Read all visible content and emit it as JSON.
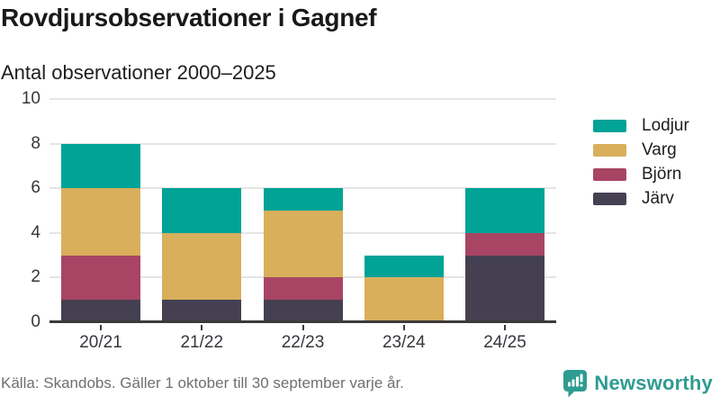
{
  "chart_data": {
    "type": "bar",
    "stacked": true,
    "title": "Rovdjursobservationer i Gagnef",
    "subtitle": "Antal observationer 2000–2025",
    "categories": [
      "20/21",
      "21/22",
      "22/23",
      "23/24",
      "24/25"
    ],
    "series": [
      {
        "name": "Järv",
        "color": "#454051",
        "values": [
          1,
          1,
          1,
          0,
          3
        ]
      },
      {
        "name": "Björn",
        "color": "#a84564",
        "values": [
          2,
          0,
          1,
          0,
          1
        ]
      },
      {
        "name": "Varg",
        "color": "#d9af5b",
        "values": [
          3,
          3,
          3,
          2,
          0
        ]
      },
      {
        "name": "Lodjur",
        "color": "#00a396",
        "values": [
          2,
          2,
          1,
          1,
          2
        ]
      }
    ],
    "ylim": [
      0,
      10
    ],
    "yticks": [
      0,
      2,
      4,
      6,
      8,
      10
    ],
    "grid": true,
    "legend_position": "right",
    "legend_order": [
      "Lodjur",
      "Varg",
      "Björn",
      "Järv"
    ]
  },
  "footer": {
    "source": "Källa: Skandobs. Gäller 1 oktober till 30 september varje år.",
    "brand": "Newsworthy",
    "brand_color": "#2e9c91"
  }
}
